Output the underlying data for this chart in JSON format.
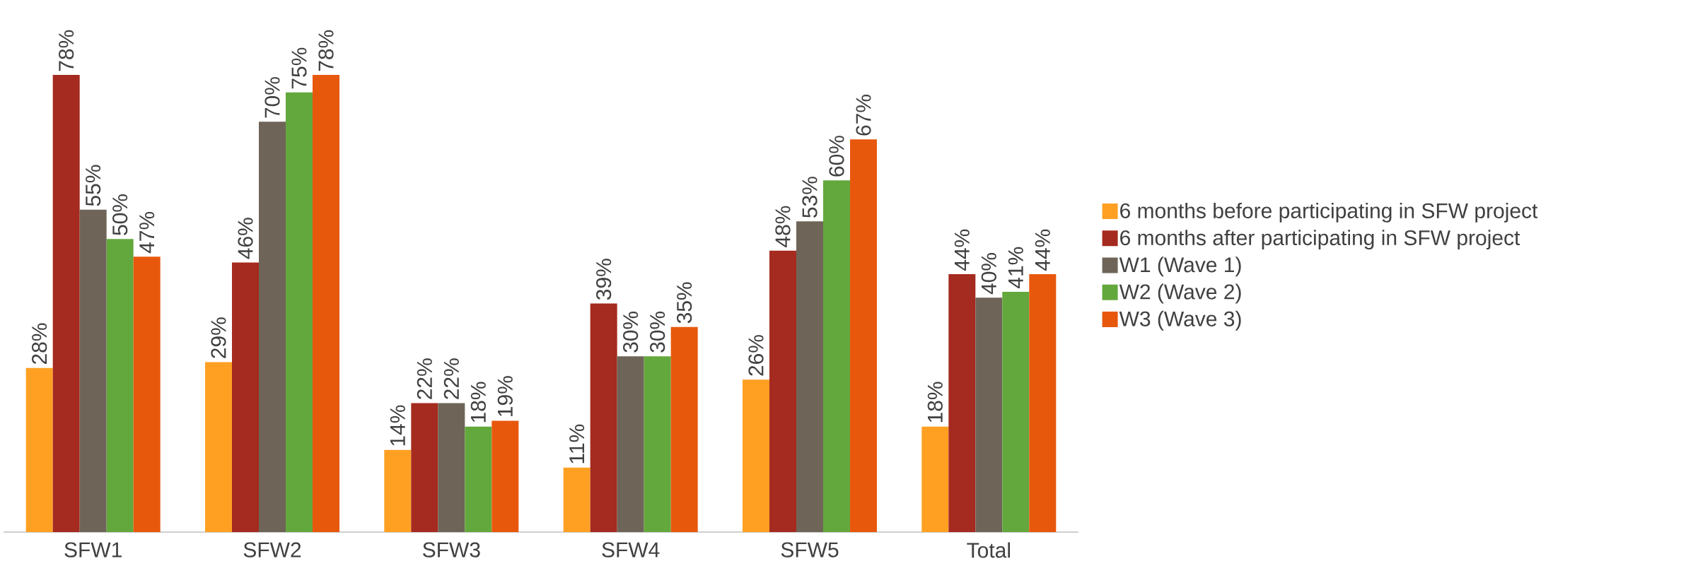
{
  "chart_data": {
    "type": "bar",
    "categories": [
      "SFW1",
      "SFW2",
      "SFW3",
      "SFW4",
      "SFW5",
      "Total"
    ],
    "legend": "right",
    "series": [
      {
        "name": "6 months before participating in SFW project",
        "color": "#ffa023",
        "values": [
          28,
          29,
          14,
          11,
          26,
          18
        ],
        "value_labels": [
          "28%",
          "29%",
          "14%",
          "11%",
          "26%",
          "18%"
        ]
      },
      {
        "name": "6 months after participating in SFW project",
        "color": "#a52a1f",
        "values": [
          78,
          46,
          22,
          39,
          48,
          44
        ],
        "value_labels": [
          "78%",
          "46%",
          "22%",
          "39%",
          "48%",
          "44%"
        ]
      },
      {
        "name": "W1 (Wave 1)",
        "color": "#6e6558",
        "values": [
          55,
          70,
          22,
          30,
          53,
          40
        ],
        "value_labels": [
          "55%",
          "70%",
          "22%",
          "30%",
          "53%",
          "40%"
        ]
      },
      {
        "name": "W2 (Wave 2)",
        "color": "#63a83c",
        "values": [
          50,
          75,
          18,
          30,
          60,
          41
        ],
        "value_labels": [
          "50%",
          "75%",
          "18%",
          "30%",
          "60%",
          "41%"
        ]
      },
      {
        "name": "W3 (Wave 3)",
        "color": "#e8580c",
        "values": [
          47,
          78,
          19,
          35,
          67,
          44
        ],
        "value_labels": [
          "47%",
          "78%",
          "19%",
          "35%",
          "67%",
          "44%"
        ]
      }
    ]
  }
}
